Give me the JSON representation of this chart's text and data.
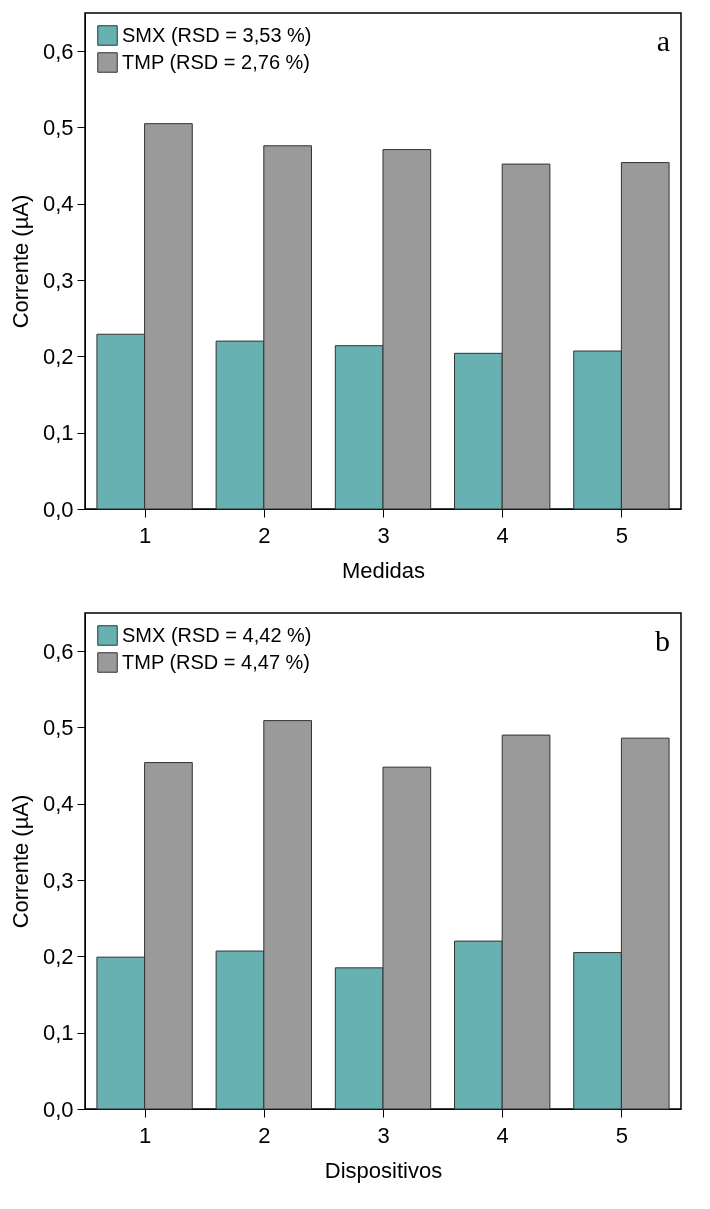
{
  "chart_data": [
    {
      "type": "bar",
      "xlabel": "Medidas",
      "ylabel": "Corrente (µA)",
      "categories": [
        "1",
        "2",
        "3",
        "4",
        "5"
      ],
      "series": [
        {
          "name": "SMX (RSD = 3,53 %)",
          "color": "#67b1b3",
          "values": [
            0.229,
            0.22,
            0.214,
            0.204,
            0.207
          ]
        },
        {
          "name": "TMP (RSD = 2,76 %)",
          "color": "#9a9a9a",
          "values": [
            0.505,
            0.476,
            0.471,
            0.452,
            0.454
          ]
        }
      ],
      "ylim": [
        0,
        0.65
      ],
      "yticks": [
        {
          "value": 0,
          "label": "0,0"
        },
        {
          "value": 0.1,
          "label": "0,1"
        },
        {
          "value": 0.2,
          "label": "0,2"
        },
        {
          "value": 0.3,
          "label": "0,3"
        },
        {
          "value": 0.4,
          "label": "0,4"
        },
        {
          "value": 0.5,
          "label": "0,5"
        },
        {
          "value": 0.6,
          "label": "0,6"
        }
      ],
      "grid": false,
      "legend": "top left",
      "annotations": [
        "a"
      ]
    },
    {
      "type": "bar",
      "xlabel": "Dispositivos",
      "ylabel": "Corrente (µA)",
      "categories": [
        "1",
        "2",
        "3",
        "4",
        "5"
      ],
      "series": [
        {
          "name": "SMX (RSD = 4,42 %)",
          "color": "#67b1b3",
          "values": [
            0.199,
            0.207,
            0.185,
            0.22,
            0.205
          ]
        },
        {
          "name": "TMP (RSD = 4,47 %)",
          "color": "#9a9a9a",
          "values": [
            0.454,
            0.509,
            0.448,
            0.49,
            0.486
          ]
        }
      ],
      "ylim": [
        0,
        0.65
      ],
      "yticks": [
        {
          "value": 0,
          "label": "0,0"
        },
        {
          "value": 0.1,
          "label": "0,1"
        },
        {
          "value": 0.2,
          "label": "0,2"
        },
        {
          "value": 0.3,
          "label": "0,3"
        },
        {
          "value": 0.4,
          "label": "0,4"
        },
        {
          "value": 0.5,
          "label": "0,5"
        },
        {
          "value": 0.6,
          "label": "0,6"
        }
      ],
      "grid": false,
      "legend": "top left",
      "annotations": [
        "b"
      ]
    }
  ]
}
